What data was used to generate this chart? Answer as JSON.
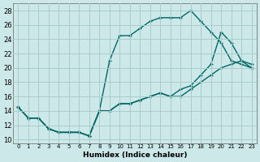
{
  "xlabel": "Humidex (Indice chaleur)",
  "bg_color": "#cce8e8",
  "grid_color": "#aacccc",
  "line_color": "#006666",
  "xlim": [
    -0.5,
    23.5
  ],
  "ylim": [
    9.5,
    29
  ],
  "xticks": [
    0,
    1,
    2,
    3,
    4,
    5,
    6,
    7,
    8,
    9,
    10,
    11,
    12,
    13,
    14,
    15,
    16,
    17,
    18,
    19,
    20,
    21,
    22,
    23
  ],
  "yticks": [
    10,
    12,
    14,
    16,
    18,
    20,
    22,
    24,
    26,
    28
  ],
  "line1_x": [
    0,
    1,
    2,
    3,
    4,
    5,
    6,
    7,
    8,
    9,
    10,
    11,
    12,
    13,
    14,
    15,
    16,
    17,
    18,
    19,
    20,
    21,
    22,
    23
  ],
  "line1_y": [
    14.5,
    13.0,
    13.0,
    11.5,
    11.0,
    11.0,
    11.0,
    10.5,
    14.0,
    21.0,
    24.5,
    24.5,
    25.5,
    26.5,
    27.0,
    27.0,
    27.0,
    28.0,
    26.5,
    25.0,
    23.5,
    21.0,
    20.5,
    20.0
  ],
  "line2_x": [
    0,
    1,
    2,
    3,
    4,
    5,
    6,
    7,
    8,
    9,
    10,
    11,
    12,
    13,
    14,
    15,
    16,
    17,
    18,
    19,
    20,
    21,
    22,
    23
  ],
  "line2_y": [
    14.5,
    13.0,
    13.0,
    11.5,
    11.0,
    11.0,
    11.0,
    10.5,
    14.0,
    14.0,
    15.0,
    15.0,
    15.5,
    16.0,
    16.5,
    16.0,
    17.0,
    17.5,
    19.0,
    20.5,
    25.0,
    23.5,
    21.0,
    20.0
  ],
  "line3_x": [
    0,
    1,
    2,
    3,
    4,
    5,
    6,
    7,
    8,
    9,
    10,
    11,
    12,
    13,
    14,
    15,
    16,
    17,
    18,
    19,
    20,
    21,
    22,
    23
  ],
  "line3_y": [
    14.5,
    13.0,
    13.0,
    11.5,
    11.0,
    11.0,
    11.0,
    10.5,
    14.0,
    14.0,
    15.0,
    15.0,
    15.5,
    16.0,
    16.5,
    16.0,
    16.0,
    17.0,
    18.0,
    19.0,
    20.0,
    20.5,
    21.0,
    20.5
  ]
}
